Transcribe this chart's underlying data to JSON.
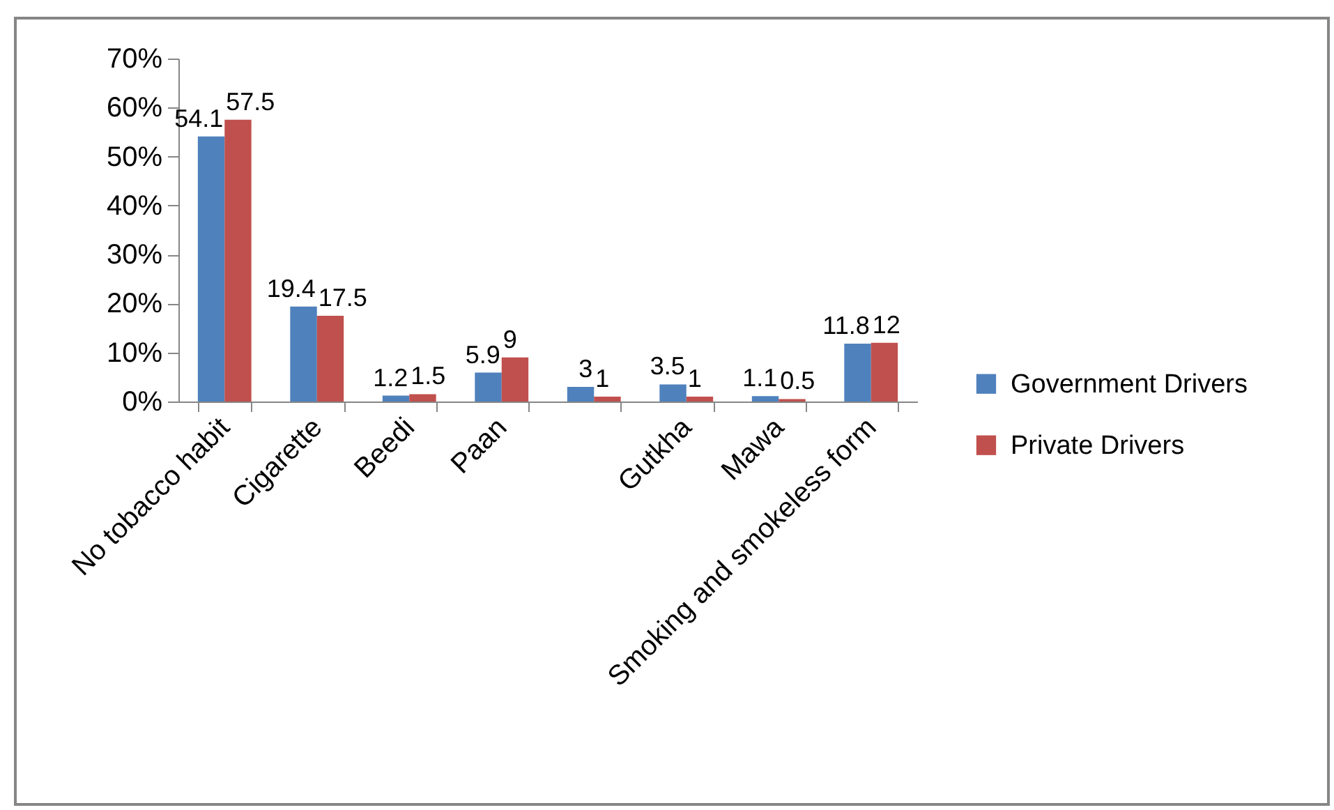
{
  "chart_data": {
    "type": "bar",
    "categories": [
      "No tobacco habit",
      "Cigarette",
      "Beedi",
      "Paan",
      null,
      "Gutkha",
      "Mawa",
      "Smoking and smokeless form"
    ],
    "series": [
      {
        "name": "Government Drivers",
        "color": "#4f81bd",
        "values": [
          54.1,
          19.4,
          1.2,
          5.9,
          3,
          3.5,
          1.1,
          11.8
        ]
      },
      {
        "name": "Private Drivers",
        "color": "#c0504d",
        "values": [
          57.5,
          17.5,
          1.5,
          9,
          1,
          1,
          0.5,
          12
        ]
      }
    ],
    "ylim": [
      0,
      70
    ],
    "yticks": [
      {
        "value": 0,
        "label": "0%"
      },
      {
        "value": 10,
        "label": "10%"
      },
      {
        "value": 20,
        "label": "20%"
      },
      {
        "value": 30,
        "label": "30%"
      },
      {
        "value": 40,
        "label": "40%"
      },
      {
        "value": 50,
        "label": "50%"
      },
      {
        "value": 60,
        "label": "60%"
      },
      {
        "value": 70,
        "label": "70%"
      }
    ],
    "data_labels": true,
    "legend": "right",
    "grid": false
  }
}
